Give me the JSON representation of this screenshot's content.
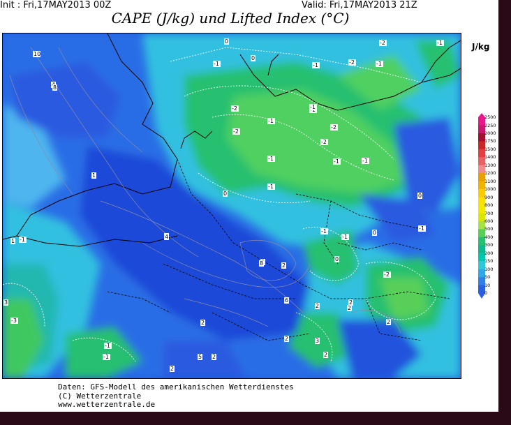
{
  "header": {
    "init": "Init : Fri,17MAY2013 00Z",
    "valid": "Valid: Fri,17MAY2013 21Z",
    "title": "CAPE (J/kg) und Lifted Index (°C)"
  },
  "colorbar": {
    "unit": "J/kg",
    "labels": [
      "2500",
      "2250",
      "2000",
      "1750",
      "1500",
      "1400",
      "1300",
      "1200",
      "1100",
      "1000",
      "900",
      "800",
      "700",
      "600",
      "500",
      "400",
      "300",
      "200",
      "150",
      "100",
      "50",
      "10",
      "0"
    ],
    "colors": [
      "#e8188c",
      "#c81870",
      "#a01030",
      "#c82828",
      "#e04040",
      "#e86464",
      "#f08c8c",
      "#e8a000",
      "#f0b400",
      "#f8cc00",
      "#fce000",
      "#f0e800",
      "#d8e800",
      "#a8e048",
      "#58d058",
      "#28c070",
      "#10b890",
      "#00c8b0",
      "#30c8d8",
      "#30a8e8",
      "#3080e8",
      "#2860e0"
    ]
  },
  "map": {
    "lifted_index_labels": [
      "-2",
      "-1",
      "-2",
      "-2",
      "-1",
      "-1",
      "-1",
      "-2",
      "-1",
      "-2",
      "-1",
      "-1",
      "-2",
      "-1",
      "-1",
      "-1",
      "-1",
      "-1",
      "-1",
      "-1",
      "-2",
      "0",
      "0",
      "0",
      "0",
      "1",
      "1",
      "1",
      "2",
      "2",
      "2",
      "2",
      "2",
      "2",
      "2",
      "2",
      "2",
      "2",
      "2",
      "3",
      "3",
      "4",
      "4",
      "5",
      "6",
      "8",
      "8",
      "10",
      "-3",
      "-1",
      "-1",
      "-1",
      "0",
      "0"
    ],
    "legend_icon": "cape-colorbar"
  },
  "footer": {
    "line1": "Daten: GFS-Modell des amerikanischen Wetterdienstes",
    "line2": "(C) Wetterzentrale",
    "line3": "www.wetterzentrale.de"
  }
}
